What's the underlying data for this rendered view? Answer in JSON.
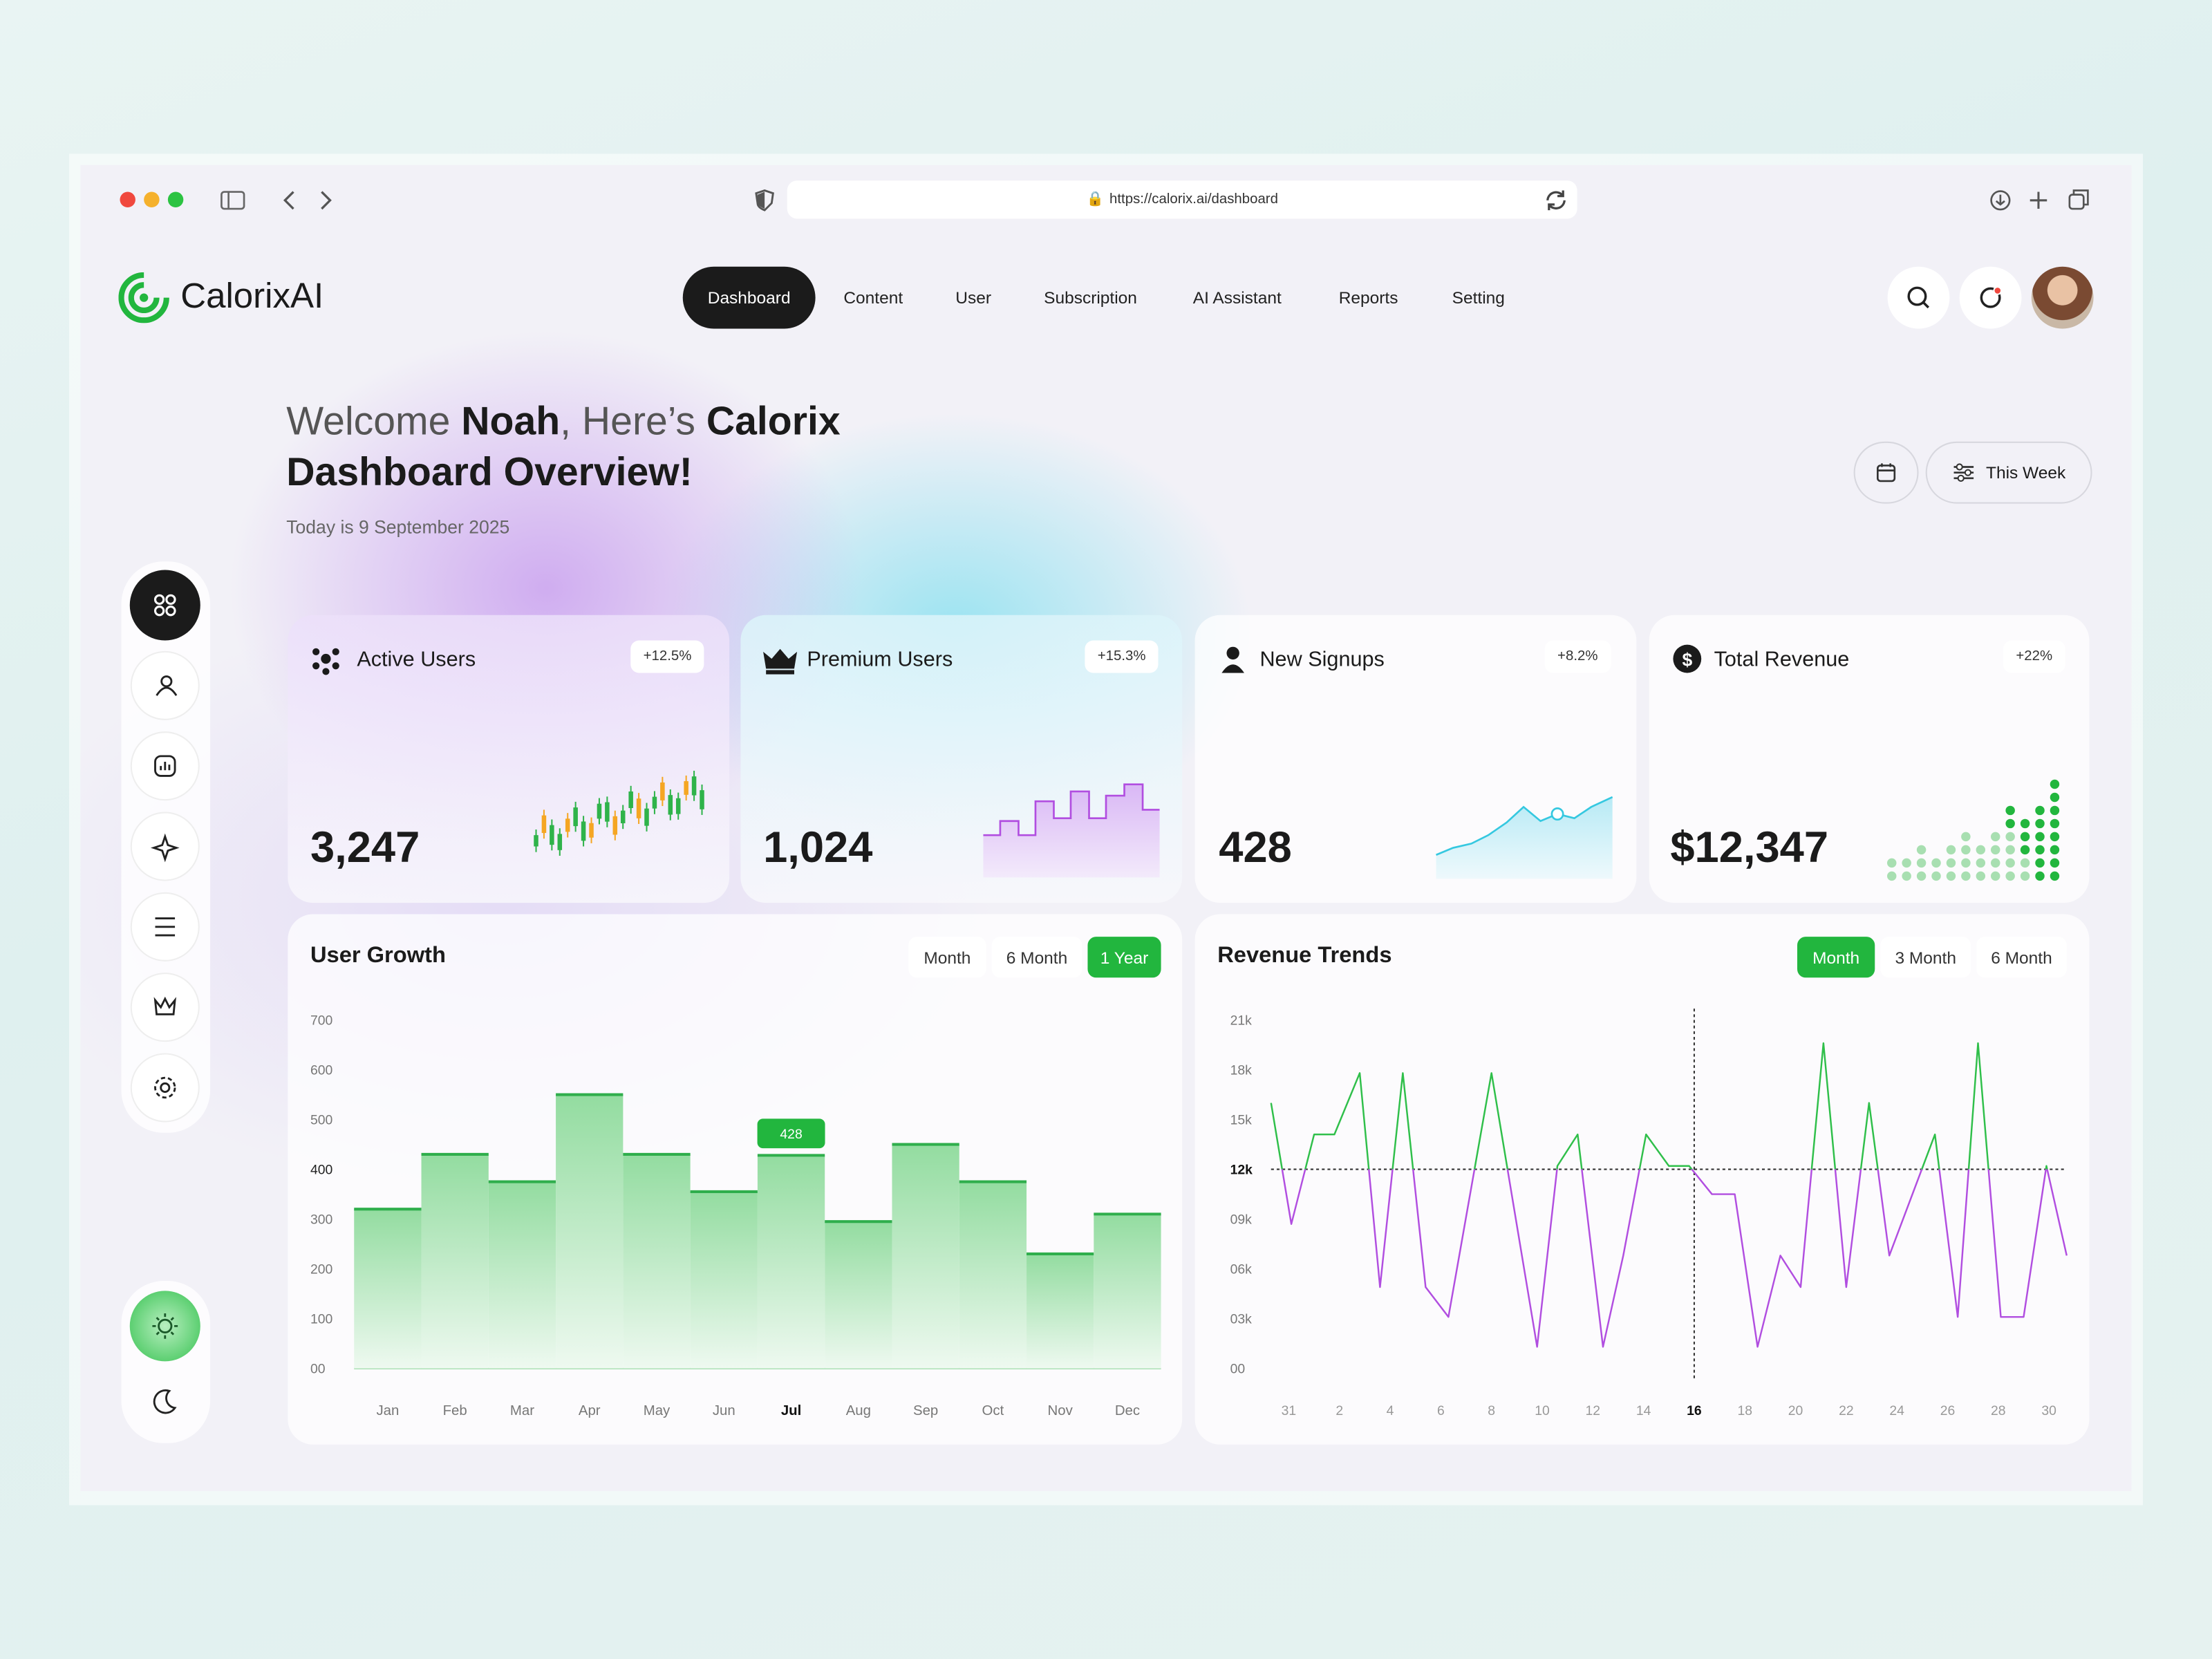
{
  "browser": {
    "url": "https://calorix.ai/dashboard"
  },
  "header": {
    "brand": "CalorixAI",
    "nav": [
      "Dashboard",
      "Content",
      "User",
      "Subscription",
      "AI Assistant",
      "Reports",
      "Setting"
    ],
    "active_nav": 0
  },
  "welcome": {
    "greeting": "Welcome",
    "name": "Noah",
    "connector": ", Here’s",
    "highlight": "Calorix Dashboard Overview!",
    "date": "Today is 9 September 2025"
  },
  "filter": {
    "period": "This Week"
  },
  "stats": [
    {
      "label": "Active Users",
      "value": "3,247",
      "change": "+12.5%"
    },
    {
      "label": "Premium Users",
      "value": "1,024",
      "change": "+15.3%"
    },
    {
      "label": "New Signups",
      "value": "428",
      "change": "+8.2%"
    },
    {
      "label": "Total Revenue",
      "value": "$12,347",
      "change": "+22%"
    }
  ],
  "chart_data": [
    {
      "type": "bar",
      "title": "User Growth",
      "range_options": [
        "Month",
        "6 Month",
        "1 Year"
      ],
      "active_range": 2,
      "categories": [
        "Jan",
        "Feb",
        "Mar",
        "Apr",
        "May",
        "Jun",
        "Jul",
        "Aug",
        "Sep",
        "Oct",
        "Nov",
        "Dec"
      ],
      "values": [
        320,
        430,
        375,
        550,
        430,
        355,
        428,
        295,
        450,
        375,
        230,
        310
      ],
      "highlight_category": 6,
      "color": "#2fae4c",
      "ylim": [
        0,
        700
      ],
      "yticks": [
        700,
        600,
        500,
        400,
        300,
        200,
        100,
        {
          "value": 0,
          "label": "00"
        }
      ]
    },
    {
      "type": "line",
      "title": "Revenue Trends",
      "range_options": [
        "Month",
        "3 Month",
        "6 Month"
      ],
      "active_range": 0,
      "x": [
        -0.7,
        0.1,
        1.0,
        1.8,
        2.8,
        3.6,
        4.5,
        5.4,
        6.3,
        8.0,
        9.8,
        10.6,
        11.4,
        12.4,
        13.2,
        14.1,
        15.0,
        15.8,
        16.7,
        17.6,
        18.5,
        19.4,
        20.2,
        21.1,
        22.0,
        22.9,
        23.7,
        25.5,
        26.4,
        27.2,
        28.1,
        29.0,
        29.9,
        30.7
      ],
      "series": [
        {
          "color": "#2fbf4a",
          "color_below": "#b14ee0",
          "values": [
            16000,
            8700,
            14100,
            14100,
            17800,
            4900,
            17800,
            4900,
            3100,
            17800,
            1300,
            12200,
            14100,
            1300,
            6800,
            14100,
            12200,
            12200,
            10500,
            10500,
            1300,
            6800,
            4900,
            19600,
            4900,
            16000,
            6800,
            14100,
            3100,
            19600,
            3100,
            3100,
            12200,
            6800
          ]
        }
      ],
      "reference_line": {
        "y": 12000,
        "x": 16
      },
      "xlim": [
        -0.7,
        30.7
      ],
      "xticks": [
        {
          "value": 0,
          "label": "31"
        },
        2,
        4,
        6,
        8,
        10,
        12,
        14,
        16,
        18,
        20,
        22,
        24,
        26,
        28,
        30
      ],
      "ylim": [
        0,
        21000
      ],
      "yticks": [
        {
          "value": 21000,
          "label": "21k"
        },
        {
          "value": 18000,
          "label": "18k"
        },
        {
          "value": 15000,
          "label": "15k"
        },
        {
          "value": 12000,
          "label": "12k"
        },
        {
          "value": 9000,
          "label": "09k"
        },
        {
          "value": 6000,
          "label": "06k"
        },
        {
          "value": 3000,
          "label": "03k"
        },
        {
          "value": 0,
          "label": "00"
        }
      ]
    }
  ]
}
